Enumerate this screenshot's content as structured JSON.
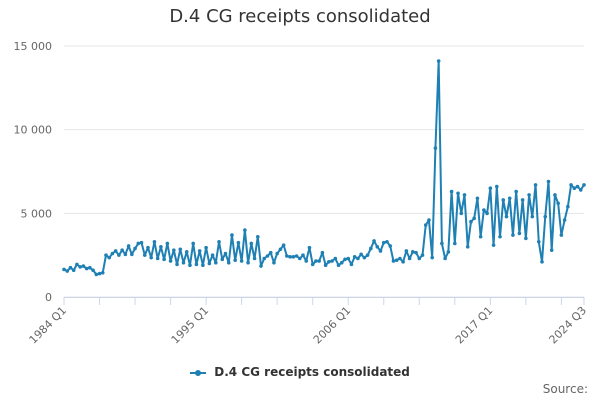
{
  "chart_data": {
    "type": "line",
    "title": "D.4 CG receipts consolidated",
    "xlabel": "",
    "ylabel": "",
    "ylim": [
      0,
      15000
    ],
    "yticks": [
      0,
      5000,
      10000,
      15000
    ],
    "ytick_labels": [
      "0",
      "5 000",
      "10 000",
      "15 000"
    ],
    "xticks": [
      "1984 Q1",
      "1995 Q1",
      "2006 Q1",
      "2017 Q1",
      "2024 Q3"
    ],
    "grid": "horizontal",
    "legend": "bottom-center",
    "series_color": "#1f80b4",
    "period_start": "1984 Q1",
    "period_end": "2024 Q3",
    "series": [
      {
        "name": "D.4 CG receipts consolidated",
        "values": [
          1650,
          1550,
          1750,
          1600,
          1950,
          1800,
          1850,
          1700,
          1750,
          1600,
          1350,
          1400,
          1450,
          2500,
          2350,
          2600,
          2750,
          2500,
          2800,
          2550,
          3050,
          2550,
          2900,
          3200,
          3250,
          2500,
          2950,
          2350,
          3300,
          2300,
          3000,
          2250,
          3200,
          2150,
          2800,
          1950,
          2850,
          2050,
          2700,
          1900,
          3200,
          1950,
          2750,
          1900,
          2950,
          2000,
          2500,
          2050,
          3300,
          2250,
          2600,
          2050,
          3700,
          2200,
          3250,
          2150,
          4000,
          2050,
          3200,
          2300,
          3600,
          1850,
          2300,
          2450,
          2650,
          2050,
          2600,
          2850,
          3100,
          2450,
          2400,
          2400,
          2450,
          2300,
          2500,
          2150,
          2950,
          1950,
          2150,
          2150,
          2650,
          1900,
          2100,
          2150,
          2300,
          1900,
          2050,
          2250,
          2300,
          1950,
          2400,
          2300,
          2550,
          2350,
          2500,
          2900,
          3350,
          3000,
          2750,
          3250,
          3300,
          3050,
          2150,
          2200,
          2300,
          2100,
          2750,
          2300,
          2700,
          2650,
          2300,
          2500,
          4300,
          4600,
          2350,
          8900,
          14100,
          3200,
          2300,
          2700,
          6300,
          3200,
          6200,
          5000,
          6100,
          3000,
          4500,
          4700,
          5900,
          3600,
          5200,
          5000,
          6500,
          3100,
          6600,
          3600,
          5800,
          4800,
          5900,
          3700,
          6300,
          3800,
          5800,
          3500,
          6100,
          4800,
          6700,
          3300,
          2100,
          4800,
          6900,
          2800,
          6100,
          5600,
          3700,
          4600,
          5400,
          6700,
          6500,
          6600,
          6400,
          6700
        ]
      }
    ]
  },
  "credits": "Source:"
}
